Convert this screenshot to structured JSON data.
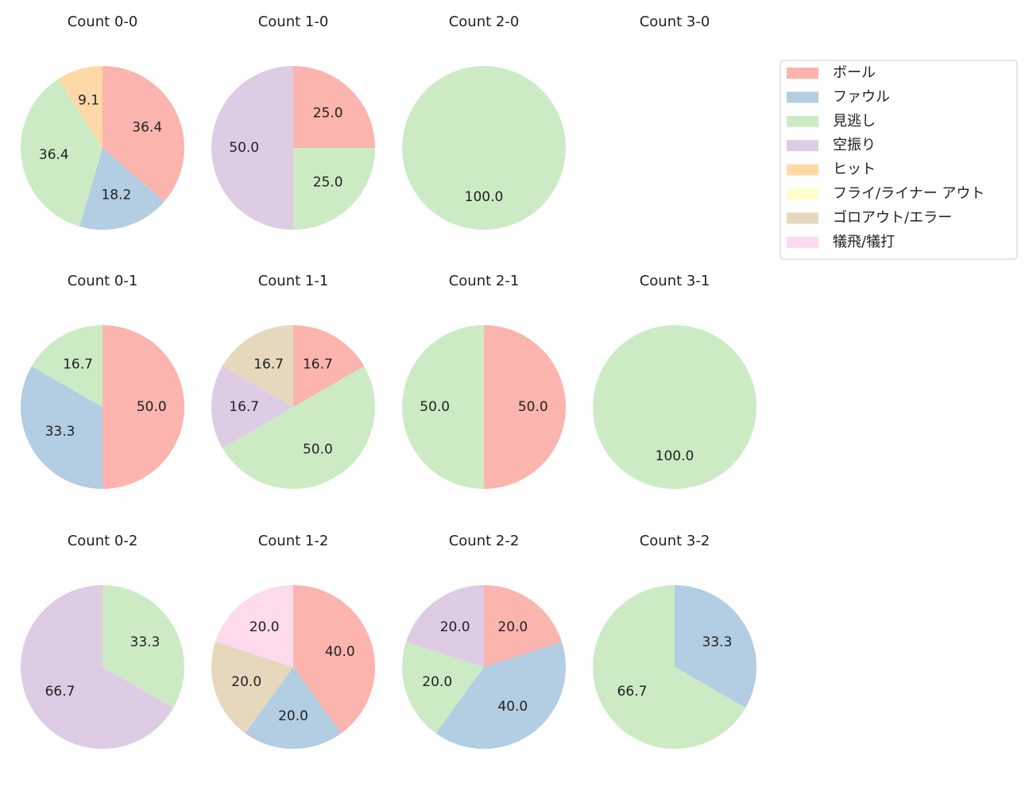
{
  "chart_data": [
    {
      "type": "pie",
      "title": "Count 0-0",
      "categories": [
        "ボール",
        "ファウル",
        "見逃し",
        "ヒット"
      ],
      "values": [
        36.4,
        18.2,
        36.4,
        9.1
      ],
      "colors": [
        "#fbb4ae",
        "#b3cde3",
        "#ccebc5",
        "#fed9a6"
      ]
    },
    {
      "type": "pie",
      "title": "Count 1-0",
      "categories": [
        "ボール",
        "見逃し",
        "空振り"
      ],
      "values": [
        25,
        25,
        50
      ],
      "value_labels": [
        "25.0",
        "25.0",
        "50.0"
      ],
      "colors": [
        "#fbb4ae",
        "#ccebc5",
        "#decbe4"
      ]
    },
    {
      "type": "pie",
      "title": "Count 2-0",
      "categories": [
        "見逃し"
      ],
      "values": [
        100
      ],
      "value_labels": [
        "100.0"
      ],
      "colors": [
        "#ccebc5"
      ]
    },
    {
      "type": "pie",
      "title": "Count 3-0",
      "categories": [],
      "values": [],
      "colors": []
    },
    {
      "type": "pie",
      "title": "Count 0-1",
      "categories": [
        "ボール",
        "ファウル",
        "見逃し"
      ],
      "values": [
        50,
        33.3,
        16.7
      ],
      "value_labels": [
        "50.0",
        "33.3",
        "16.7"
      ],
      "colors": [
        "#fbb4ae",
        "#b3cde3",
        "#ccebc5"
      ]
    },
    {
      "type": "pie",
      "title": "Count 1-1",
      "categories": [
        "ボール",
        "見逃し",
        "空振り",
        "ゴロアウト/エラー"
      ],
      "values": [
        16.7,
        50,
        16.7,
        16.7
      ],
      "value_labels": [
        "16.7",
        "50.0",
        "16.7",
        "16.7"
      ],
      "colors": [
        "#fbb4ae",
        "#ccebc5",
        "#decbe4",
        "#e5d8bd"
      ]
    },
    {
      "type": "pie",
      "title": "Count 2-1",
      "categories": [
        "ボール",
        "見逃し"
      ],
      "values": [
        50,
        50
      ],
      "value_labels": [
        "50.0",
        "50.0"
      ],
      "colors": [
        "#fbb4ae",
        "#ccebc5"
      ]
    },
    {
      "type": "pie",
      "title": "Count 3-1",
      "categories": [
        "見逃し"
      ],
      "values": [
        100
      ],
      "value_labels": [
        "100.0"
      ],
      "colors": [
        "#ccebc5"
      ]
    },
    {
      "type": "pie",
      "title": "Count 0-2",
      "categories": [
        "見逃し",
        "空振り"
      ],
      "values": [
        33.3,
        66.7
      ],
      "colors": [
        "#ccebc5",
        "#decbe4"
      ]
    },
    {
      "type": "pie",
      "title": "Count 1-2",
      "categories": [
        "ボール",
        "ファウル",
        "ゴロアウト/エラー",
        "犠飛/犠打"
      ],
      "values": [
        40,
        20,
        20,
        20
      ],
      "value_labels": [
        "40.0",
        "20.0",
        "20.0",
        "20.0"
      ],
      "colors": [
        "#fbb4ae",
        "#b3cde3",
        "#e5d8bd",
        "#fddaec"
      ]
    },
    {
      "type": "pie",
      "title": "Count 2-2",
      "categories": [
        "ボール",
        "ファウル",
        "見逃し",
        "空振り"
      ],
      "values": [
        20,
        40,
        20,
        20
      ],
      "value_labels": [
        "20.0",
        "40.0",
        "20.0",
        "20.0"
      ],
      "colors": [
        "#fbb4ae",
        "#b3cde3",
        "#ccebc5",
        "#decbe4"
      ]
    },
    {
      "type": "pie",
      "title": "Count 3-2",
      "categories": [
        "ファウル",
        "見逃し"
      ],
      "values": [
        33.3,
        66.7
      ],
      "colors": [
        "#b3cde3",
        "#ccebc5"
      ]
    }
  ],
  "legend": {
    "labels": [
      "ボール",
      "ファウル",
      "見逃し",
      "空振り",
      "ヒット",
      "フライ/ライナー アウト",
      "ゴロアウト/エラー",
      "犠飛/犠打"
    ],
    "colors": [
      "#fbb4ae",
      "#b3cde3",
      "#ccebc5",
      "#decbe4",
      "#fed9a6",
      "#ffffcc",
      "#e5d8bd",
      "#fddaec"
    ],
    "position": "upper right"
  }
}
